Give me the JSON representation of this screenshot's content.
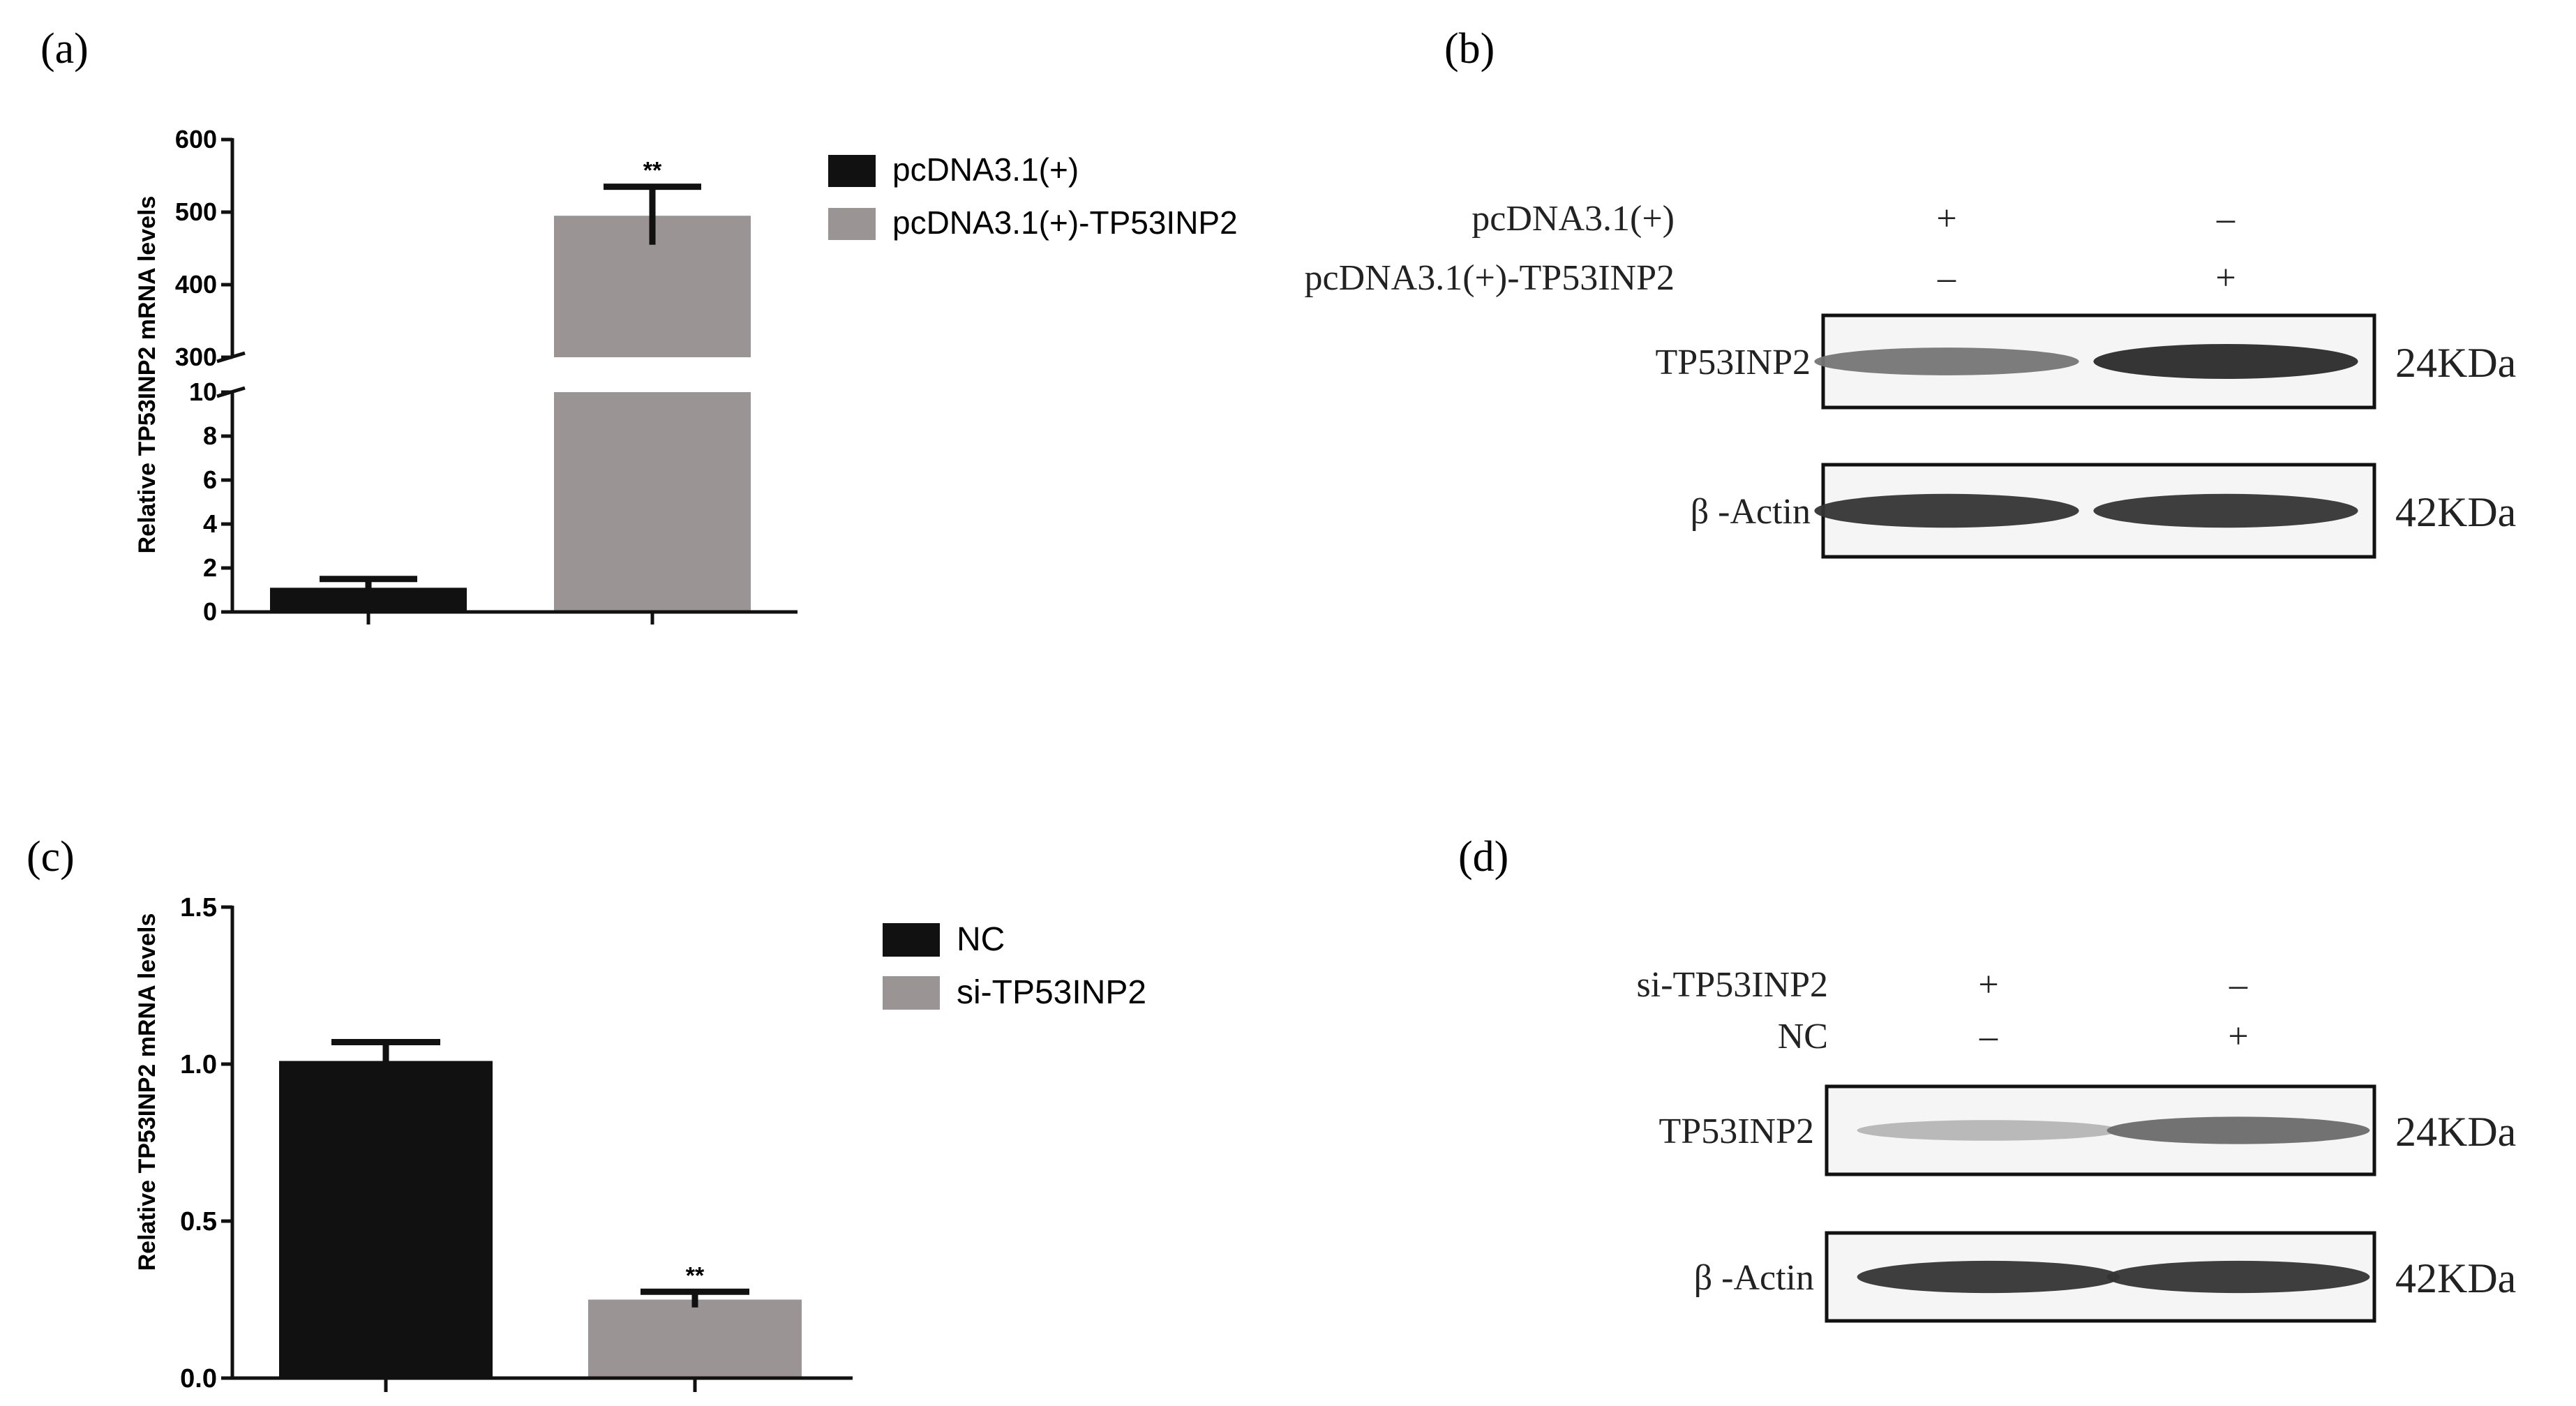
{
  "panels": {
    "a": {
      "label": "(a)"
    },
    "b": {
      "label": "(b)",
      "row_labels": [
        "pcDNA3.1(+)",
        "pcDNA3.1(+)-TP53INP2"
      ],
      "lanes": [
        {
          "signs": [
            "+",
            "–"
          ]
        },
        {
          "signs": [
            "–",
            "+"
          ]
        }
      ],
      "bands": [
        {
          "name": "TP53INP2",
          "size": "24KDa",
          "intensity": [
            0.55,
            0.9
          ]
        },
        {
          "name": "β -Actin",
          "size": "42KDa",
          "intensity": [
            0.85,
            0.85
          ]
        }
      ]
    },
    "c": {
      "label": "(c)"
    },
    "d": {
      "label": "(d)",
      "row_labels": [
        "si-TP53INP2",
        "NC"
      ],
      "lanes": [
        {
          "signs": [
            "+",
            "–"
          ]
        },
        {
          "signs": [
            "–",
            "+"
          ]
        }
      ],
      "bands": [
        {
          "name": "TP53INP2",
          "size": "24KDa",
          "intensity": [
            0.25,
            0.6
          ]
        },
        {
          "name": "β -Actin",
          "size": "42KDa",
          "intensity": [
            0.85,
            0.85
          ]
        }
      ]
    }
  },
  "chart_data": [
    {
      "panel": "a",
      "type": "bar",
      "ylabel": "Relative TP53INP2 mRNA levels",
      "ylim_lower": [
        0,
        10
      ],
      "ylim_upper": [
        300,
        600
      ],
      "yticks_lower": [
        0,
        2,
        4,
        6,
        8,
        10
      ],
      "yticks_upper": [
        300,
        400,
        500,
        600
      ],
      "axis_break": true,
      "legend_position": "right",
      "series": [
        {
          "name": "pcDNA3.1(+)",
          "value": 1.1,
          "error": 0.4,
          "color": "#111111"
        },
        {
          "name": "pcDNA3.1(+)-TP53INP2",
          "value": 495,
          "error": 40,
          "color": "#9a9494",
          "annotation": "**"
        }
      ]
    },
    {
      "panel": "c",
      "type": "bar",
      "ylabel": "Relative TP53INP2 mRNA levels",
      "ylim": [
        0,
        1.5
      ],
      "yticks": [
        "0.0",
        "0.5",
        "1.0",
        "1.5"
      ],
      "legend_position": "right",
      "series": [
        {
          "name": "NC",
          "value": 1.01,
          "error": 0.06,
          "color": "#111111"
        },
        {
          "name": "si-TP53INP2",
          "value": 0.25,
          "error": 0.025,
          "color": "#9a9494",
          "annotation": "**"
        }
      ]
    }
  ]
}
